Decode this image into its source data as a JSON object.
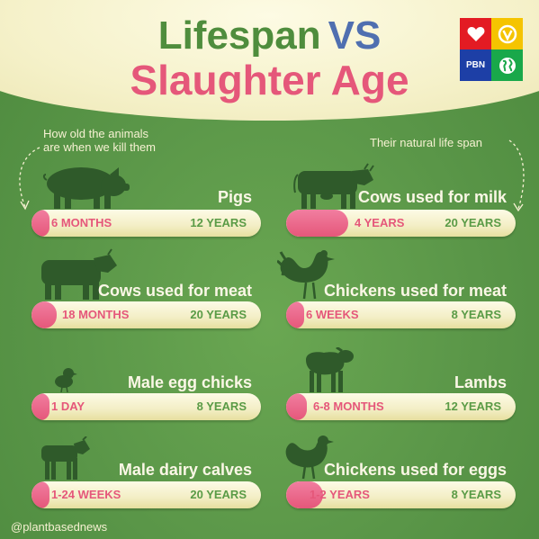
{
  "header": {
    "title_word1": "Lifespan",
    "title_word2": "VS",
    "title_line2": "Slaughter Age"
  },
  "notes": {
    "left_line1": "How old the animals",
    "left_line2": "are when we kill them",
    "right": "Their natural life span"
  },
  "logo": {
    "icons": [
      "heart-icon",
      "vegan-v-icon",
      "pbn-icon",
      "globe-icon"
    ],
    "pbn_text": "PBN",
    "colors": [
      "#e31b23",
      "#f5c400",
      "#1d3fa6",
      "#19a84a"
    ]
  },
  "animals": [
    {
      "name": "Pigs",
      "kill": "6 MONTHS",
      "life": "12 YEARS",
      "fill_fraction": 0.06,
      "icon": "pig-icon"
    },
    {
      "name": "Cows used for milk",
      "kill": "4 YEARS",
      "life": "20 YEARS",
      "fill_fraction": 0.27,
      "icon": "dairy-cow-icon"
    },
    {
      "name": "Cows used for meat",
      "kill": "18 MONTHS",
      "life": "20 YEARS",
      "fill_fraction": 0.11,
      "icon": "beef-cow-icon"
    },
    {
      "name": "Chickens used for meat",
      "kill": "6 WEEKS",
      "life": "8 YEARS",
      "fill_fraction": 0.05,
      "icon": "rooster-icon"
    },
    {
      "name": "Male egg chicks",
      "kill": "1 DAY",
      "life": "8 YEARS",
      "fill_fraction": 0.03,
      "icon": "chick-icon"
    },
    {
      "name": "Lambs",
      "kill": "6-8 MONTHS",
      "life": "12 YEARS",
      "fill_fraction": 0.09,
      "icon": "lamb-icon"
    },
    {
      "name": "Male dairy calves",
      "kill": "1-24 WEEKS",
      "life": "20 YEARS",
      "fill_fraction": 0.06,
      "icon": "calf-icon"
    },
    {
      "name": "Chickens used for eggs",
      "kill": "1-2 YEARS",
      "life": "8 YEARS",
      "fill_fraction": 0.16,
      "icon": "hen-icon"
    }
  ],
  "footer": {
    "handle": "@plantbasednews"
  }
}
